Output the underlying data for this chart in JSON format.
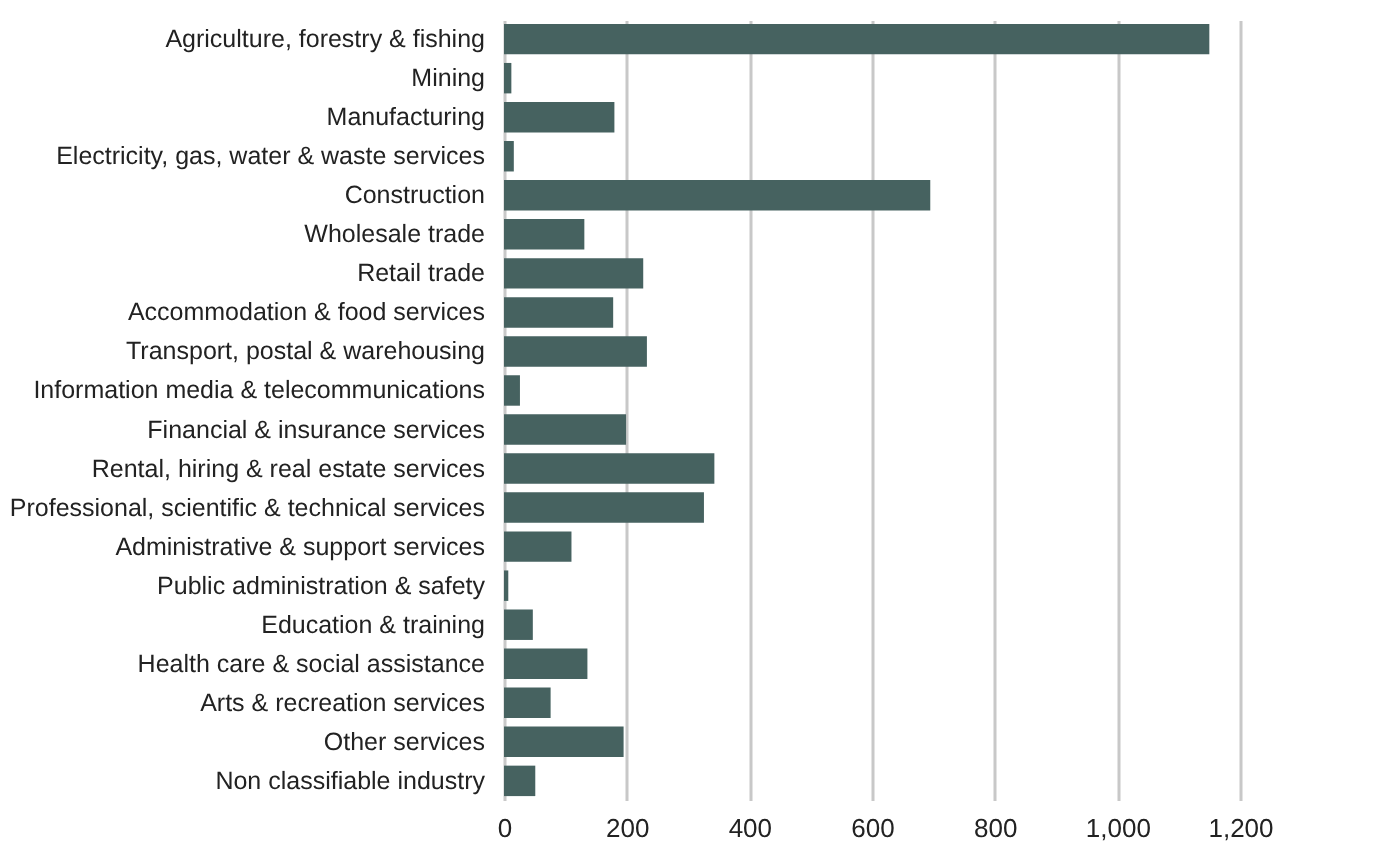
{
  "chart_data": {
    "type": "bar",
    "orientation": "horizontal",
    "categories": [
      "Agriculture, forestry & fishing",
      "Mining",
      "Manufacturing",
      "Electricity, gas, water & waste services",
      "Construction",
      "Wholesale trade",
      "Retail trade",
      "Accommodation & food services",
      "Transport, postal & warehousing",
      "Information media & telecommunications",
      "Financial & insurance services",
      "Rental, hiring & real estate services",
      "Professional, scientific & technical services",
      "Administrative & support services",
      "Public administration & safety",
      "Education & training",
      "Health care & social assistance",
      "Arts & recreation services",
      "Other services",
      "Non classifiable industry"
    ],
    "values": [
      1150,
      12,
      180,
      16,
      695,
      131,
      227,
      178,
      233,
      26,
      199,
      343,
      326,
      110,
      7,
      47,
      136,
      76,
      195,
      51
    ],
    "color": "#466260",
    "xlim": [
      0,
      1200
    ],
    "xticks": [
      0,
      200,
      400,
      600,
      800,
      {
        "value": 1000,
        "label": "1,000"
      },
      {
        "value": 1200,
        "label": "1,200"
      }
    ],
    "grid": "x"
  }
}
